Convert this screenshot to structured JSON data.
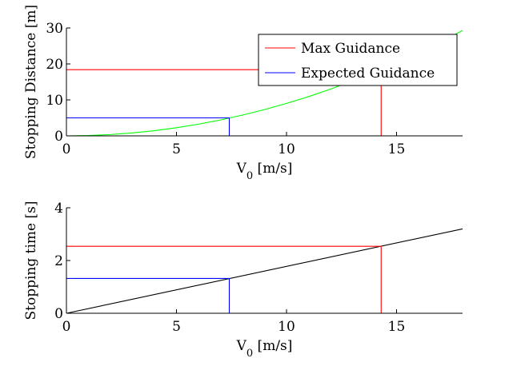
{
  "chart_data": [
    {
      "type": "line",
      "title": "",
      "xlabel_main": "V",
      "xlabel_sub": "0",
      "xlabel_unit": " [m/s]",
      "ylabel": "Stopping Distance [m]",
      "xlim": [
        0,
        18
      ],
      "ylim": [
        0,
        30
      ],
      "xticks": [
        0,
        5,
        10,
        15
      ],
      "yticks": [
        0,
        10,
        20,
        30
      ],
      "grid": false,
      "legend": {
        "placement": "top-right",
        "entries": [
          {
            "name": "Max Guidance",
            "color": "#ff0000"
          },
          {
            "name": "Expected Guidance",
            "color": "#0000ff"
          }
        ]
      },
      "series": [
        {
          "color": "#00ff00",
          "x": [
            0,
            1,
            2,
            3,
            4,
            5,
            6,
            7,
            8,
            9,
            10,
            11,
            12,
            13,
            14,
            15,
            16,
            17,
            18
          ],
          "y": [
            0,
            0.09,
            0.36,
            0.81,
            1.44,
            2.26,
            3.25,
            4.42,
            5.78,
            7.31,
            9.03,
            10.9,
            13.0,
            15.3,
            17.7,
            20.3,
            23.1,
            26.1,
            29.3
          ]
        },
        {
          "name": "Max Guidance",
          "color": "#ff0000",
          "x": [
            0,
            14.3,
            14.3
          ],
          "y": [
            18.4,
            18.4,
            0
          ]
        },
        {
          "name": "Expected Guidance",
          "color": "#0000ff",
          "x": [
            0,
            7.4,
            7.4
          ],
          "y": [
            5.0,
            5.0,
            0
          ]
        }
      ]
    },
    {
      "type": "line",
      "title": "",
      "xlabel_main": "V",
      "xlabel_sub": "0",
      "xlabel_unit": " [m/s]",
      "ylabel": "Stopping time [s]",
      "xlim": [
        0,
        18
      ],
      "ylim": [
        0,
        4
      ],
      "xticks": [
        0,
        5,
        10,
        15
      ],
      "yticks": [
        0,
        2,
        4
      ],
      "grid": false,
      "series": [
        {
          "color": "#000000",
          "x": [
            0,
            18
          ],
          "y": [
            0,
            3.2
          ]
        },
        {
          "color": "#ff0000",
          "x": [
            0,
            14.3,
            14.3
          ],
          "y": [
            2.54,
            2.54,
            0
          ]
        },
        {
          "color": "#0000ff",
          "x": [
            0,
            7.4,
            7.4
          ],
          "y": [
            1.32,
            1.32,
            0
          ]
        }
      ]
    }
  ]
}
